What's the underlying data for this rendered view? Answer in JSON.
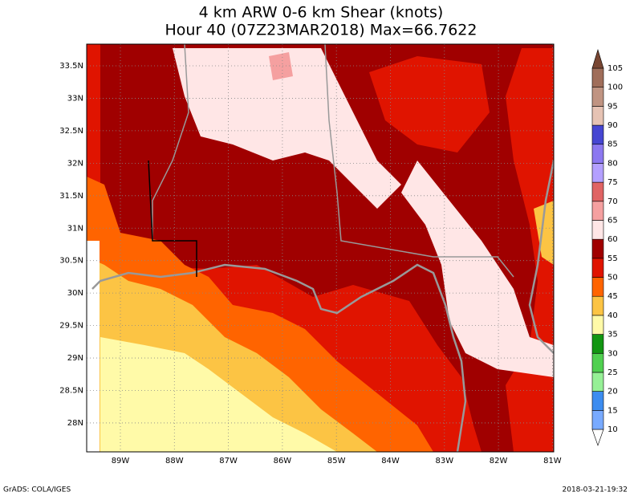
{
  "title": [
    "4 km ARW 0-6 km Shear (knots)",
    "Hour 40 (07Z23MAR2018) Max=66.7622"
  ],
  "map": {
    "lat_labels": [
      "33.5N",
      "33N",
      "32.5N",
      "32N",
      "31.5N",
      "31N",
      "30.5N",
      "30N",
      "29.5N",
      "29N",
      "28.5N",
      "28N"
    ],
    "lon_labels": [
      "89W",
      "88W",
      "87W",
      "86W",
      "85W",
      "84W",
      "83W",
      "82W",
      "81W"
    ]
  },
  "colorbar": {
    "levels": [
      10,
      15,
      20,
      25,
      30,
      35,
      40,
      45,
      50,
      55,
      60,
      65,
      70,
      75,
      80,
      85,
      90,
      95,
      100,
      105
    ],
    "colors": [
      "#ffffff",
      "#78aaff",
      "#3c8cf0",
      "#96f096",
      "#50d050",
      "#129612",
      "#fffaa8",
      "#fcc444",
      "#ff6400",
      "#e01400",
      "#a00000",
      "#ffe6e6",
      "#f5a0a0",
      "#e06464",
      "#b4a0ff",
      "#8c78f0",
      "#4646d2",
      "#e6c3b4",
      "#c09482",
      "#a06e5a",
      "#784632"
    ]
  },
  "footer": {
    "left": "GrADS: COLA/IGES",
    "right": "2018-03-21-19:32"
  }
}
